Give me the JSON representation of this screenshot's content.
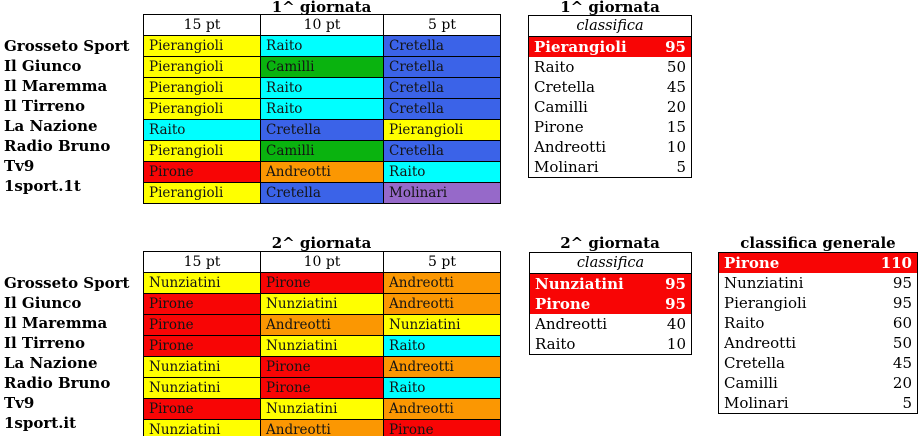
{
  "colors": {
    "yellow": "#FFFF00",
    "cyan": "#00FFFF",
    "blue": "#3B63E8",
    "green": "#0AB30F",
    "red": "#F80505",
    "orange": "#FB9702",
    "purple": "#9669C9"
  },
  "highlight": {
    "bg": "#F80505",
    "text": "#FFFFFF"
  },
  "sections": [
    {
      "title": "1^ giornata",
      "columns": [
        "15 pt",
        "10 pt",
        "5 pt"
      ],
      "rows": [
        {
          "label": "Grosseto Sport",
          "cells": [
            {
              "name": "Pierangioli",
              "color": "yellow"
            },
            {
              "name": "Raito",
              "color": "cyan"
            },
            {
              "name": "Cretella",
              "color": "blue"
            }
          ]
        },
        {
          "label": "Il Giunco",
          "cells": [
            {
              "name": "Pierangioli",
              "color": "yellow"
            },
            {
              "name": "Camilli",
              "color": "green"
            },
            {
              "name": "Cretella",
              "color": "blue"
            }
          ]
        },
        {
          "label": "Il Maremma",
          "cells": [
            {
              "name": "Pierangioli",
              "color": "yellow"
            },
            {
              "name": "Raito",
              "color": "cyan"
            },
            {
              "name": "Cretella",
              "color": "blue"
            }
          ]
        },
        {
          "label": "Il Tirreno",
          "cells": [
            {
              "name": "Pierangioli",
              "color": "yellow"
            },
            {
              "name": "Raito",
              "color": "cyan"
            },
            {
              "name": "Cretella",
              "color": "blue"
            }
          ]
        },
        {
          "label": "La Nazione",
          "cells": [
            {
              "name": "Raito",
              "color": "cyan"
            },
            {
              "name": "Cretella",
              "color": "blue"
            },
            {
              "name": "Pierangioli",
              "color": "yellow"
            }
          ]
        },
        {
          "label": "Radio Bruno",
          "cells": [
            {
              "name": "Pierangioli",
              "color": "yellow"
            },
            {
              "name": "Camilli",
              "color": "green"
            },
            {
              "name": "Cretella",
              "color": "blue"
            }
          ]
        },
        {
          "label": "Tv9",
          "cells": [
            {
              "name": "Pirone",
              "color": "red"
            },
            {
              "name": "Andreotti",
              "color": "orange"
            },
            {
              "name": "Raito",
              "color": "cyan"
            }
          ]
        },
        {
          "label": "1sport.1t",
          "cells": [
            {
              "name": "Pierangioli",
              "color": "yellow"
            },
            {
              "name": "Cretella",
              "color": "blue"
            },
            {
              "name": "Molinari",
              "color": "purple"
            }
          ]
        }
      ],
      "classifica": {
        "title": "1^ giornata",
        "header": "classifica",
        "entries": [
          {
            "name": "Pierangioli",
            "points": "95",
            "highlight": true
          },
          {
            "name": "Raito",
            "points": "50",
            "highlight": false
          },
          {
            "name": "Cretella",
            "points": "45",
            "highlight": false
          },
          {
            "name": "Camilli",
            "points": "20",
            "highlight": false
          },
          {
            "name": "Pirone",
            "points": "15",
            "highlight": false
          },
          {
            "name": "Andreotti",
            "points": "10",
            "highlight": false
          },
          {
            "name": "Molinari",
            "points": "5",
            "highlight": false
          }
        ]
      }
    },
    {
      "title": "2^ giornata",
      "columns": [
        "15 pt",
        "10 pt",
        "5 pt"
      ],
      "rows": [
        {
          "label": "Grosseto Sport",
          "cells": [
            {
              "name": "Nunziatini",
              "color": "yellow"
            },
            {
              "name": "Pirone",
              "color": "red"
            },
            {
              "name": "Andreotti",
              "color": "orange"
            }
          ]
        },
        {
          "label": "Il Giunco",
          "cells": [
            {
              "name": "Pirone",
              "color": "red"
            },
            {
              "name": "Nunziatini",
              "color": "yellow"
            },
            {
              "name": "Andreotti",
              "color": "orange"
            }
          ]
        },
        {
          "label": "Il Maremma",
          "cells": [
            {
              "name": "Pirone",
              "color": "red"
            },
            {
              "name": "Andreotti",
              "color": "orange"
            },
            {
              "name": "Nunziatini",
              "color": "yellow"
            }
          ]
        },
        {
          "label": "Il Tirreno",
          "cells": [
            {
              "name": "Pirone",
              "color": "red"
            },
            {
              "name": "Nunziatini",
              "color": "yellow"
            },
            {
              "name": "Raito",
              "color": "cyan"
            }
          ]
        },
        {
          "label": "La Nazione",
          "cells": [
            {
              "name": "Nunziatini",
              "color": "yellow"
            },
            {
              "name": "Pirone",
              "color": "red"
            },
            {
              "name": "Andreotti",
              "color": "orange"
            }
          ]
        },
        {
          "label": "Radio Bruno",
          "cells": [
            {
              "name": "Nunziatini",
              "color": "yellow"
            },
            {
              "name": "Pirone",
              "color": "red"
            },
            {
              "name": "Raito",
              "color": "cyan"
            }
          ]
        },
        {
          "label": "Tv9",
          "cells": [
            {
              "name": "Pirone",
              "color": "red"
            },
            {
              "name": "Nunziatini",
              "color": "yellow"
            },
            {
              "name": "Andreotti",
              "color": "orange"
            }
          ]
        },
        {
          "label": "1sport.it",
          "cells": [
            {
              "name": "Nunziatini",
              "color": "yellow"
            },
            {
              "name": "Andreotti",
              "color": "orange"
            },
            {
              "name": "Pirone",
              "color": "red"
            }
          ]
        }
      ],
      "classifica": {
        "title": "2^ giornata",
        "header": "classifica",
        "entries": [
          {
            "name": "Nunziatini",
            "points": "95",
            "highlight": true
          },
          {
            "name": "Pirone",
            "points": "95",
            "highlight": true
          },
          {
            "name": "Andreotti",
            "points": "40",
            "highlight": false
          },
          {
            "name": "Raito",
            "points": "10",
            "highlight": false
          }
        ]
      }
    }
  ],
  "general": {
    "title": "classifica generale",
    "entries": [
      {
        "name": "Pirone",
        "points": "110",
        "highlight": true
      },
      {
        "name": "Nunziatini",
        "points": "95",
        "highlight": false
      },
      {
        "name": "Pierangioli",
        "points": "95",
        "highlight": false
      },
      {
        "name": "Raito",
        "points": "60",
        "highlight": false
      },
      {
        "name": "Andreotti",
        "points": "50",
        "highlight": false
      },
      {
        "name": "Cretella",
        "points": "45",
        "highlight": false
      },
      {
        "name": "Camilli",
        "points": "20",
        "highlight": false
      },
      {
        "name": "Molinari",
        "points": "5",
        "highlight": false
      }
    ]
  }
}
